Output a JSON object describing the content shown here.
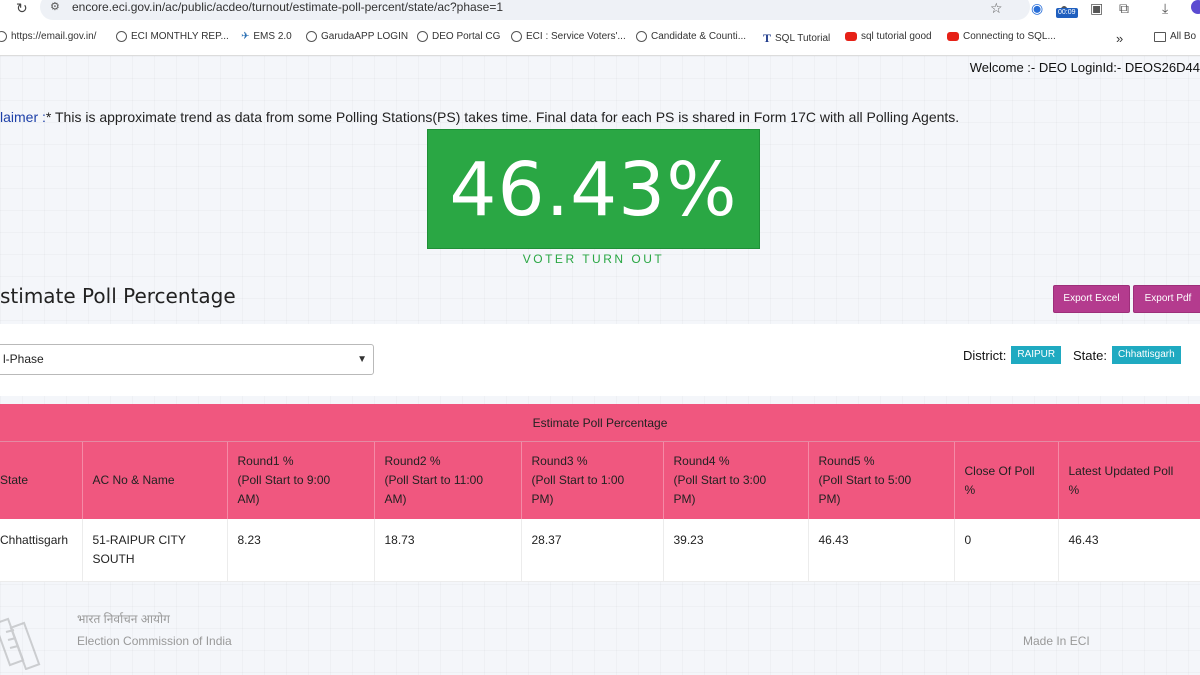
{
  "browser": {
    "url": "encore.eci.gov.in/ac/public/acdeo/turnout/estimate-poll-percent/state/ac?phase=1",
    "timer_badge": "00:09",
    "bookmarks": [
      {
        "icon": "globe-icon",
        "label": "https://email.gov.in/"
      },
      {
        "icon": "globe-icon",
        "label": "ECI MONTHLY REP..."
      },
      {
        "icon": "ems-icon",
        "label": "EMS 2.0"
      },
      {
        "icon": "globe-icon",
        "label": "GarudaAPP LOGIN"
      },
      {
        "icon": "globe-icon",
        "label": "DEO Portal CG"
      },
      {
        "icon": "globe-icon",
        "label": "ECI : Service Voters'..."
      },
      {
        "icon": "globe-icon",
        "label": "Candidate & Counti..."
      },
      {
        "icon": "t-icon",
        "label": "SQL Tutorial"
      },
      {
        "icon": "youtube-icon",
        "label": "sql tutorial good"
      },
      {
        "icon": "youtube-icon",
        "label": "Connecting to SQL..."
      }
    ],
    "more_bookmarks": "»",
    "all_bookmarks": "All Bo"
  },
  "header": {
    "welcome": "Welcome :- DEO LoginId:- DEOS26D44"
  },
  "disclaimer": {
    "label": "laimer :",
    "text": "* This is approximate trend as data from some Polling Stations(PS) takes time. Final data for each PS is shared in Form 17C with all Polling Agents."
  },
  "turnout": {
    "value": "46.43%",
    "caption": "VOTER TURN OUT"
  },
  "section": {
    "title": "stimate Poll Percentage",
    "export_excel": "Export Excel",
    "export_pdf": "Export Pdf"
  },
  "filters": {
    "phase_value": "l-Phase",
    "district_label": "District:",
    "district_value": "RAIPUR",
    "state_label": "State:",
    "state_value": "Chhattisgarh"
  },
  "table": {
    "caption": "Estimate Poll Percentage",
    "headers": [
      [
        "State"
      ],
      [
        "AC No & Name"
      ],
      [
        "Round1 %",
        "(Poll Start to 9:00",
        "AM)"
      ],
      [
        "Round2 %",
        "(Poll Start to 11:00",
        "AM)"
      ],
      [
        "Round3 %",
        "(Poll Start to 1:00",
        "PM)"
      ],
      [
        "Round4 %",
        "(Poll Start to 3:00",
        "PM)"
      ],
      [
        "Round5 %",
        "(Poll Start to 5:00",
        "PM)"
      ],
      [
        "Close Of Poll",
        "%"
      ],
      [
        "Latest Updated Poll",
        "%"
      ]
    ],
    "rows": [
      [
        "Chhattisgarh",
        "51-RAIPUR CITY SOUTH",
        "8.23",
        "18.73",
        "28.37",
        "39.23",
        "46.43",
        "0",
        "46.43"
      ]
    ]
  },
  "footer": {
    "hindi": "भारत निर्वाचन आयोग",
    "english": "Election Commission of India",
    "made_in": "Made In ECI"
  },
  "colors": {
    "turnout_green": "#2aa744",
    "table_header_pink": "#f0577f",
    "export_button": "#b43b8e",
    "badge_teal": "#1faac1"
  }
}
